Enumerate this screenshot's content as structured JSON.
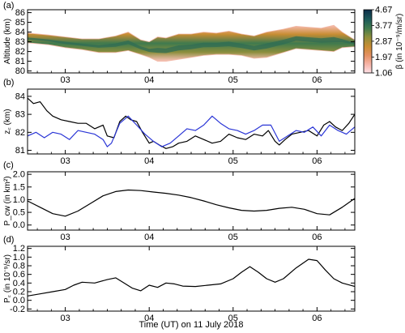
{
  "figure": {
    "xlabel": "Time (UT) on 11 July 2018",
    "panel_labels": [
      "(a)",
      "(b)",
      "(c)",
      "(d)"
    ],
    "colors": {
      "black_series": "#000000",
      "blue_series": "#2a35d6",
      "axes": "#000000"
    }
  },
  "chart_data": [
    {
      "panel": "(a)",
      "type": "heatmap",
      "ylabel": "Altitude (km)",
      "xlabel": "",
      "x_ticks": [
        "03",
        "04",
        "05",
        "06"
      ],
      "x_range_hours_ut": [
        2.55,
        6.45
      ],
      "ylim": [
        79.8,
        86.3
      ],
      "y_ticks": [
        80,
        81,
        82,
        83,
        84,
        85,
        86
      ],
      "colorbar": {
        "label": "β (in 10⁻⁹/m/sr)",
        "ticks": [
          1.06,
          1.97,
          2.87,
          3.77,
          4.67
        ],
        "range": [
          1.06,
          4.67
        ],
        "colormap": [
          "#fde0e6",
          "#f6b3a6",
          "#e49061",
          "#c88d33",
          "#8c8e3c",
          "#3f7a4e",
          "#1c5a5a",
          "#0d2e4a"
        ]
      },
      "layer_upper_edge_km": [
        [
          2.55,
          83.9
        ],
        [
          2.8,
          83.7
        ],
        [
          3.0,
          83.5
        ],
        [
          3.2,
          83.3
        ],
        [
          3.4,
          83.3
        ],
        [
          3.6,
          83.6
        ],
        [
          3.75,
          84.0
        ],
        [
          3.9,
          83.2
        ],
        [
          4.0,
          83.0
        ],
        [
          4.1,
          83.5
        ],
        [
          4.2,
          83.4
        ],
        [
          4.35,
          83.8
        ],
        [
          4.5,
          83.8
        ],
        [
          4.65,
          84.0
        ],
        [
          4.8,
          83.9
        ],
        [
          4.95,
          84.1
        ],
        [
          5.1,
          83.8
        ],
        [
          5.25,
          83.6
        ],
        [
          5.4,
          84.0
        ],
        [
          5.6,
          84.3
        ],
        [
          5.75,
          84.6
        ],
        [
          5.9,
          84.5
        ],
        [
          6.05,
          84.4
        ],
        [
          6.2,
          84.7
        ],
        [
          6.3,
          84.0
        ],
        [
          6.45,
          83.2
        ]
      ],
      "layer_lower_edge_km": [
        [
          2.55,
          82.9
        ],
        [
          2.8,
          82.7
        ],
        [
          3.0,
          82.4
        ],
        [
          3.2,
          82.2
        ],
        [
          3.4,
          81.9
        ],
        [
          3.6,
          81.9
        ],
        [
          3.75,
          82.1
        ],
        [
          3.9,
          81.7
        ],
        [
          4.0,
          81.4
        ],
        [
          4.1,
          81.0
        ],
        [
          4.2,
          81.0
        ],
        [
          4.35,
          81.2
        ],
        [
          4.5,
          81.4
        ],
        [
          4.65,
          81.6
        ],
        [
          4.8,
          81.7
        ],
        [
          4.95,
          81.7
        ],
        [
          5.1,
          81.6
        ],
        [
          5.25,
          81.3
        ],
        [
          5.4,
          81.4
        ],
        [
          5.6,
          81.9
        ],
        [
          5.75,
          82.3
        ],
        [
          5.9,
          82.2
        ],
        [
          6.05,
          82.1
        ],
        [
          6.2,
          82.0
        ],
        [
          6.3,
          82.4
        ],
        [
          6.45,
          82.5
        ]
      ]
    },
    {
      "panel": "(b)",
      "type": "line",
      "ylabel": "z꜀ (km)",
      "xlabel": "",
      "x_ticks": [
        "03",
        "04",
        "05",
        "06"
      ],
      "x_range_hours_ut": [
        2.55,
        6.45
      ],
      "ylim": [
        80.8,
        84.4
      ],
      "y_ticks": [
        81,
        82,
        83,
        84
      ],
      "series": [
        {
          "color": "#000000",
          "x": [
            2.55,
            2.62,
            2.7,
            2.78,
            2.85,
            2.95,
            3.05,
            3.15,
            3.25,
            3.35,
            3.45,
            3.5,
            3.58,
            3.65,
            3.72,
            3.78,
            3.85,
            3.92,
            4.0,
            4.05,
            4.12,
            4.2,
            4.28,
            4.35,
            4.45,
            4.55,
            4.65,
            4.75,
            4.85,
            4.95,
            5.05,
            5.15,
            5.25,
            5.35,
            5.42,
            5.5,
            5.55,
            5.62,
            5.7,
            5.8,
            5.9,
            6.0,
            6.08,
            6.15,
            6.22,
            6.3,
            6.38,
            6.45
          ],
          "values": [
            83.9,
            83.6,
            83.7,
            83.2,
            82.9,
            82.7,
            82.6,
            82.5,
            82.5,
            82.2,
            82.4,
            81.8,
            81.7,
            82.6,
            82.9,
            82.7,
            82.6,
            82.0,
            81.4,
            81.5,
            81.3,
            81.1,
            81.2,
            81.4,
            81.5,
            81.8,
            81.6,
            81.4,
            81.5,
            81.9,
            81.7,
            81.6,
            81.9,
            81.8,
            82.1,
            81.5,
            81.3,
            81.6,
            81.9,
            82.0,
            82.1,
            81.8,
            82.4,
            82.6,
            82.3,
            82.1,
            82.5,
            83.0
          ]
        },
        {
          "color": "#2a35d6",
          "x": [
            2.55,
            2.65,
            2.75,
            2.85,
            2.95,
            3.05,
            3.15,
            3.25,
            3.35,
            3.45,
            3.5,
            3.55,
            3.65,
            3.75,
            3.85,
            3.95,
            4.05,
            4.15,
            4.25,
            4.35,
            4.45,
            4.55,
            4.65,
            4.75,
            4.85,
            4.95,
            5.05,
            5.15,
            5.25,
            5.35,
            5.45,
            5.55,
            5.65,
            5.75,
            5.85,
            5.95,
            6.05,
            6.15,
            6.25,
            6.35,
            6.45
          ],
          "values": [
            81.8,
            82.0,
            81.7,
            82.0,
            81.9,
            81.6,
            82.1,
            82.0,
            81.9,
            81.6,
            81.2,
            81.4,
            82.5,
            82.9,
            82.4,
            81.9,
            81.5,
            81.2,
            81.4,
            81.8,
            82.2,
            82.1,
            82.4,
            82.9,
            82.5,
            82.2,
            82.1,
            81.9,
            82.1,
            82.4,
            82.4,
            81.5,
            81.8,
            82.1,
            82.0,
            82.3,
            81.8,
            82.4,
            82.1,
            81.9,
            82.3
          ]
        }
      ]
    },
    {
      "panel": "(c)",
      "type": "line",
      "ylabel": "P_cw (in km²)",
      "xlabel": "",
      "x_ticks": [
        "03",
        "04",
        "05",
        "06"
      ],
      "x_range_hours_ut": [
        2.55,
        6.45
      ],
      "ylim": [
        -0.2,
        2.1
      ],
      "y_ticks": [
        "0.0",
        "0.5",
        "1.0",
        "1.5",
        "2.0"
      ],
      "y_tick_values": [
        0.0,
        0.5,
        1.0,
        1.5,
        2.0
      ],
      "series": [
        {
          "color": "#000000",
          "x": [
            2.55,
            2.7,
            2.85,
            3.0,
            3.15,
            3.3,
            3.45,
            3.6,
            3.75,
            3.9,
            4.05,
            4.2,
            4.35,
            4.5,
            4.65,
            4.8,
            4.95,
            5.1,
            5.25,
            5.4,
            5.55,
            5.7,
            5.85,
            6.0,
            6.15,
            6.3,
            6.45
          ],
          "values": [
            0.95,
            0.7,
            0.45,
            0.35,
            0.55,
            0.85,
            1.15,
            1.32,
            1.38,
            1.36,
            1.3,
            1.25,
            1.18,
            1.08,
            0.95,
            0.8,
            0.68,
            0.58,
            0.55,
            0.58,
            0.66,
            0.7,
            0.62,
            0.45,
            0.4,
            0.7,
            1.05
          ]
        }
      ]
    },
    {
      "panel": "(d)",
      "type": "line",
      "ylabel": "P꜀ (in 10⁻⁹/sr)",
      "xlabel": "Time (UT) on 11 July 2018",
      "x_ticks": [
        "03",
        "04",
        "05",
        "06"
      ],
      "x_range_hours_ut": [
        2.55,
        6.45
      ],
      "ylim": [
        -0.25,
        1.25
      ],
      "y_ticks": [
        "-0.2",
        "0.0",
        "0.2",
        "0.4",
        "0.6",
        "0.8",
        "1.0",
        "1.2"
      ],
      "y_tick_values": [
        -0.2,
        0.0,
        0.2,
        0.4,
        0.6,
        0.8,
        1.0,
        1.2
      ],
      "series": [
        {
          "color": "#000000",
          "x": [
            2.55,
            2.7,
            2.85,
            3.0,
            3.1,
            3.2,
            3.35,
            3.5,
            3.6,
            3.7,
            3.8,
            3.9,
            4.0,
            4.1,
            4.2,
            4.3,
            4.4,
            4.55,
            4.7,
            4.85,
            5.0,
            5.1,
            5.2,
            5.3,
            5.4,
            5.5,
            5.6,
            5.75,
            5.9,
            6.0,
            6.1,
            6.2,
            6.3,
            6.45
          ],
          "values": [
            0.1,
            0.15,
            0.2,
            0.25,
            0.35,
            0.42,
            0.4,
            0.48,
            0.52,
            0.4,
            0.28,
            0.22,
            0.35,
            0.3,
            0.4,
            0.38,
            0.33,
            0.32,
            0.35,
            0.38,
            0.5,
            0.65,
            0.78,
            0.65,
            0.5,
            0.42,
            0.5,
            0.75,
            0.95,
            0.92,
            0.7,
            0.5,
            0.4,
            0.32
          ]
        }
      ]
    }
  ]
}
